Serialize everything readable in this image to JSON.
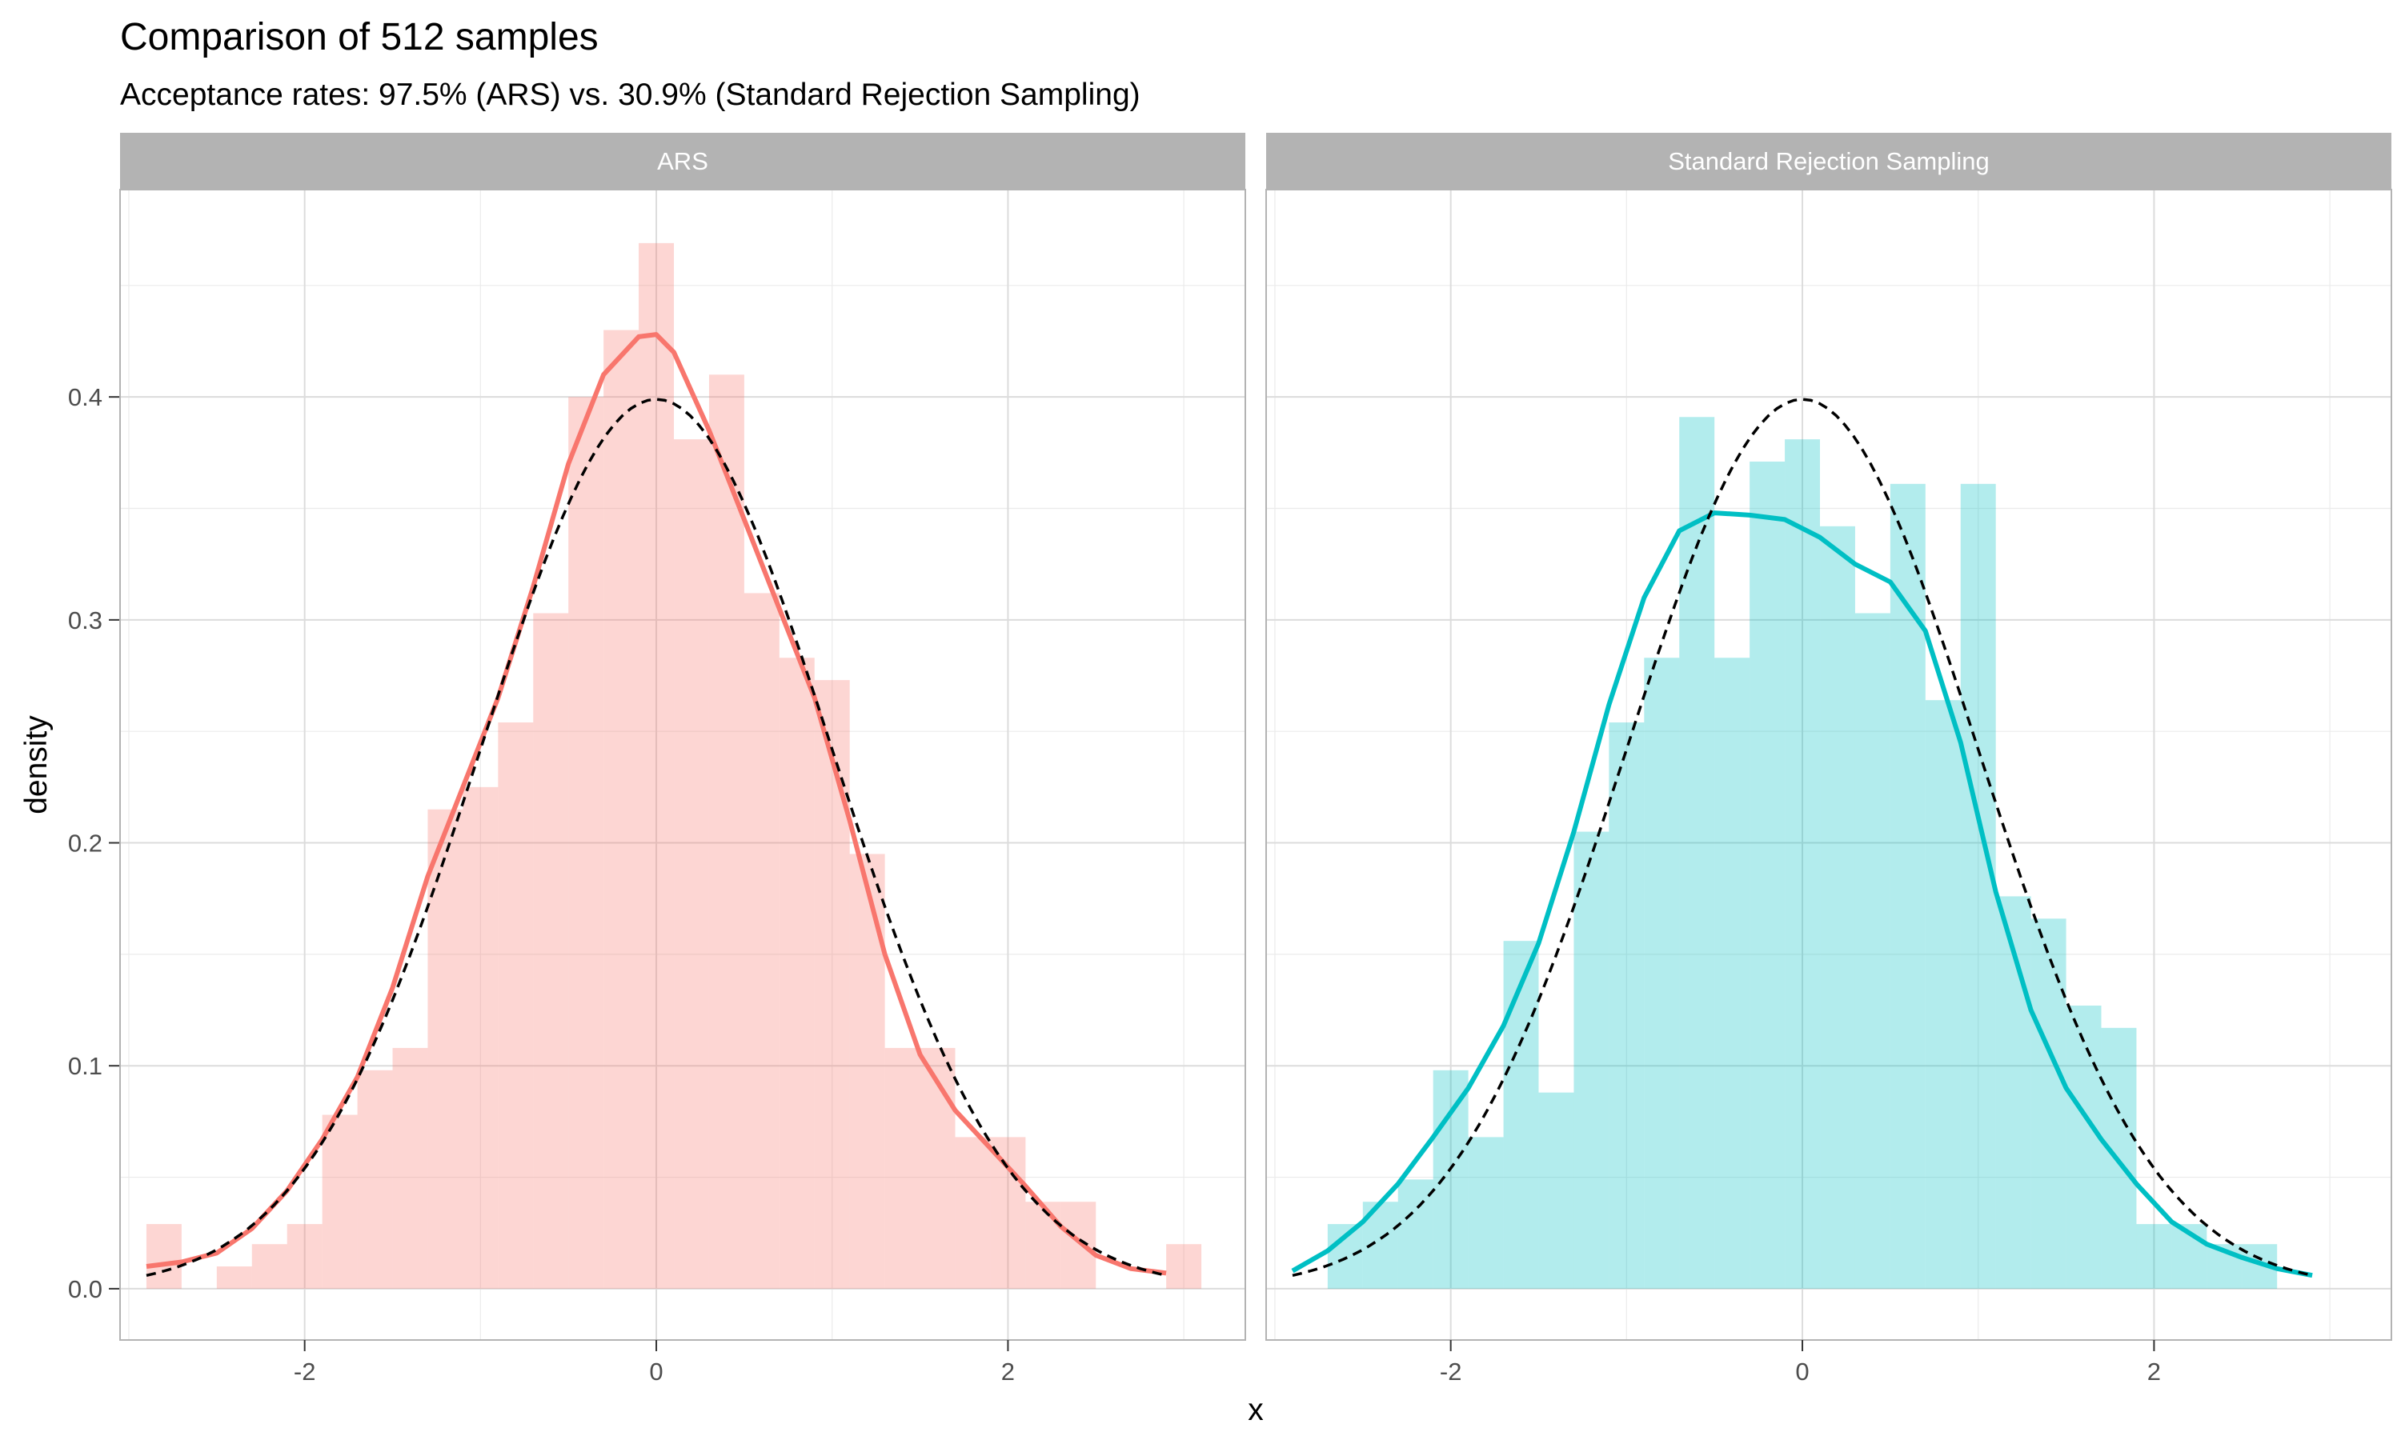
{
  "chart_data": {
    "type": "histogram-density-facet",
    "title": "Comparison of 512 samples",
    "subtitle": "Acceptance rates: 97.5% (ARS) vs. 30.9% (Standard Rejection Sampling)",
    "xlabel": "x",
    "ylabel": "density",
    "xlim": [
      -3.05,
      3.35
    ],
    "ylim": [
      -0.023,
      0.493
    ],
    "x_ticks": [
      -2,
      0,
      2
    ],
    "x_tick_labels": [
      "-2",
      "0",
      "2"
    ],
    "y_ticks": [
      0.0,
      0.1,
      0.2,
      0.3,
      0.4
    ],
    "y_tick_labels": [
      "0.0",
      "0.1",
      "0.2",
      "0.3",
      "0.4"
    ],
    "grid": true,
    "bin_width": 0.2,
    "panels": [
      {
        "name": "ARS",
        "fill_color": "#F8766D",
        "histogram": {
          "bin_centers": [
            -2.8,
            -2.6,
            -2.4,
            -2.2,
            -2.0,
            -1.8,
            -1.6,
            -1.4,
            -1.2,
            -1.0,
            -0.8,
            -0.6,
            -0.4,
            -0.2,
            0.0,
            0.2,
            0.4,
            0.6,
            0.8,
            1.0,
            1.2,
            1.4,
            1.6,
            1.8,
            2.0,
            2.2,
            2.4,
            2.6,
            2.8,
            3.0
          ],
          "density": [
            0.029,
            0.0,
            0.01,
            0.02,
            0.029,
            0.078,
            0.098,
            0.108,
            0.215,
            0.225,
            0.254,
            0.303,
            0.4,
            0.43,
            0.469,
            0.381,
            0.41,
            0.312,
            0.283,
            0.273,
            0.195,
            0.108,
            0.108,
            0.068,
            0.068,
            0.039,
            0.039,
            0.0,
            0.0,
            0.02
          ]
        },
        "kde": {
          "x": [
            -2.9,
            -2.7,
            -2.5,
            -2.3,
            -2.1,
            -1.9,
            -1.7,
            -1.5,
            -1.3,
            -1.1,
            -0.9,
            -0.7,
            -0.5,
            -0.3,
            -0.1,
            0.0,
            0.1,
            0.3,
            0.5,
            0.7,
            0.9,
            1.1,
            1.3,
            1.5,
            1.7,
            1.9,
            2.1,
            2.3,
            2.5,
            2.7,
            2.9
          ],
          "y": [
            0.01,
            0.012,
            0.016,
            0.027,
            0.044,
            0.067,
            0.095,
            0.135,
            0.185,
            0.225,
            0.265,
            0.315,
            0.37,
            0.41,
            0.427,
            0.428,
            0.42,
            0.385,
            0.345,
            0.305,
            0.265,
            0.21,
            0.15,
            0.105,
            0.08,
            0.063,
            0.046,
            0.028,
            0.015,
            0.009,
            0.007
          ]
        }
      },
      {
        "name": "Standard Rejection Sampling",
        "fill_color": "#00BFC4",
        "histogram": {
          "bin_centers": [
            -2.6,
            -2.4,
            -2.2,
            -2.0,
            -1.8,
            -1.6,
            -1.4,
            -1.2,
            -1.0,
            -0.8,
            -0.6,
            -0.4,
            -0.2,
            0.0,
            0.2,
            0.4,
            0.6,
            0.8,
            1.0,
            1.2,
            1.4,
            1.6,
            1.8,
            2.0,
            2.2,
            2.4,
            2.6
          ],
          "density": [
            0.029,
            0.039,
            0.049,
            0.098,
            0.068,
            0.156,
            0.088,
            0.205,
            0.254,
            0.283,
            0.391,
            0.283,
            0.371,
            0.381,
            0.342,
            0.303,
            0.361,
            0.264,
            0.361,
            0.176,
            0.166,
            0.127,
            0.117,
            0.029,
            0.029,
            0.02,
            0.02
          ]
        },
        "kde": {
          "x": [
            -2.9,
            -2.7,
            -2.5,
            -2.3,
            -2.1,
            -1.9,
            -1.7,
            -1.5,
            -1.3,
            -1.1,
            -0.9,
            -0.7,
            -0.5,
            -0.3,
            -0.1,
            0.1,
            0.3,
            0.5,
            0.7,
            0.9,
            1.1,
            1.3,
            1.5,
            1.7,
            1.9,
            2.1,
            2.3,
            2.5,
            2.7,
            2.9
          ],
          "y": [
            0.008,
            0.017,
            0.03,
            0.047,
            0.068,
            0.09,
            0.118,
            0.155,
            0.205,
            0.262,
            0.31,
            0.34,
            0.348,
            0.347,
            0.345,
            0.337,
            0.325,
            0.317,
            0.295,
            0.245,
            0.178,
            0.125,
            0.09,
            0.067,
            0.047,
            0.03,
            0.02,
            0.014,
            0.009,
            0.006
          ]
        }
      }
    ],
    "reference_curve": {
      "name": "N(0,1)",
      "style": "dashed",
      "color": "#000000",
      "x_range": [
        -2.9,
        2.9
      ]
    }
  }
}
